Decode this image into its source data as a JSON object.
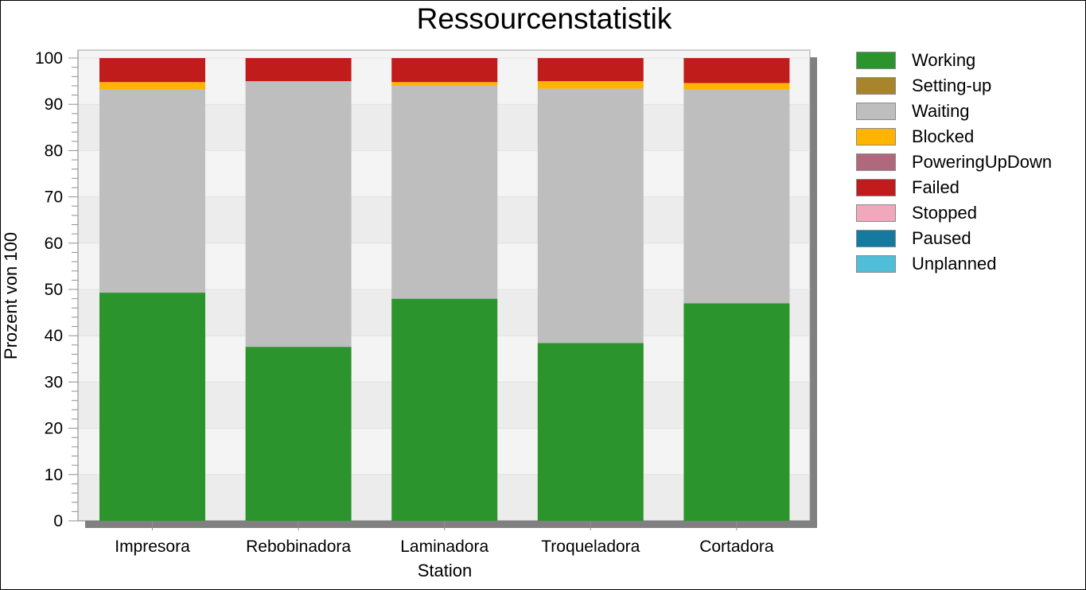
{
  "chart_data": {
    "type": "bar",
    "stacked": true,
    "title": "Ressourcenstatistik",
    "xlabel": "Station",
    "ylabel": "Prozent von 100",
    "ylim": [
      0,
      100
    ],
    "yticks": [
      "0",
      "10",
      "20",
      "30",
      "40",
      "50",
      "60",
      "70",
      "80",
      "90",
      "100"
    ],
    "categories": [
      "Impresora",
      "Rebobinadora",
      "Laminadora",
      "Troqueladora",
      "Cortadora"
    ],
    "legend_position": "right",
    "series": [
      {
        "name": "Working",
        "color": "#2c942c",
        "values": [
          49.3,
          37.6,
          48.0,
          38.4,
          47.0
        ]
      },
      {
        "name": "Setting-up",
        "color": "#a8842c",
        "values": [
          0,
          0,
          0,
          0,
          0
        ]
      },
      {
        "name": "Waiting",
        "color": "#bebebe",
        "values": [
          44.0,
          57.4,
          46.0,
          55.0,
          46.2
        ]
      },
      {
        "name": "Blocked",
        "color": "#ffb400",
        "values": [
          1.5,
          0,
          0.8,
          1.6,
          1.4
        ]
      },
      {
        "name": "PoweringUpDown",
        "color": "#b0687c",
        "values": [
          0,
          0,
          0,
          0,
          0
        ]
      },
      {
        "name": "Failed",
        "color": "#c01c1c",
        "values": [
          5.2,
          5.0,
          5.2,
          5.0,
          5.4
        ]
      },
      {
        "name": "Stopped",
        "color": "#f0a8bc",
        "values": [
          0,
          0,
          0,
          0,
          0
        ]
      },
      {
        "name": "Paused",
        "color": "#147aa0",
        "values": [
          0,
          0,
          0,
          0,
          0
        ]
      },
      {
        "name": "Unplanned",
        "color": "#50bed8",
        "values": [
          0,
          0,
          0,
          0,
          0
        ]
      }
    ]
  }
}
